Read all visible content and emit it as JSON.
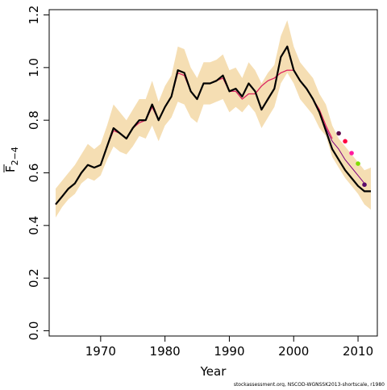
{
  "chart_data": {
    "type": "line",
    "title": "",
    "xlabel": "Year",
    "ylabel": "F",
    "ylabel_subscript": "2−4",
    "xlim": [
      1962.0,
      2013.0
    ],
    "ylim": [
      -0.02,
      1.22
    ],
    "x_ticks": [
      1970,
      1980,
      1990,
      2000,
      2010
    ],
    "x_tick_labels": [
      "1970",
      "1980",
      "1990",
      "2000",
      "2010"
    ],
    "y_ticks": [
      0.0,
      0.2,
      0.4,
      0.6,
      0.8,
      1.0,
      1.2
    ],
    "y_tick_labels": [
      "0.0",
      "0.2",
      "0.4",
      "0.6",
      "0.8",
      "1.0",
      "1.2"
    ],
    "grid": false,
    "legend": "none",
    "years": [
      1963,
      1964,
      1965,
      1966,
      1967,
      1968,
      1969,
      1970,
      1971,
      1972,
      1973,
      1974,
      1975,
      1976,
      1977,
      1978,
      1979,
      1980,
      1981,
      1982,
      1983,
      1984,
      1985,
      1986,
      1987,
      1988,
      1989,
      1990,
      1991,
      1992,
      1993,
      1994,
      1995,
      1996,
      1997,
      1998,
      1999,
      2000,
      2001,
      2002,
      2003,
      2004,
      2005,
      2006,
      2007,
      2008,
      2009,
      2010,
      2011,
      2012
    ],
    "confidence_band": {
      "color": "#f5deb3",
      "lower": [
        0.43,
        0.47,
        0.5,
        0.52,
        0.56,
        0.58,
        0.57,
        0.59,
        0.65,
        0.7,
        0.68,
        0.67,
        0.7,
        0.74,
        0.73,
        0.78,
        0.72,
        0.78,
        0.81,
        0.87,
        0.86,
        0.81,
        0.79,
        0.86,
        0.86,
        0.87,
        0.88,
        0.83,
        0.85,
        0.83,
        0.86,
        0.83,
        0.77,
        0.81,
        0.85,
        0.94,
        0.98,
        0.94,
        0.88,
        0.85,
        0.82,
        0.77,
        0.74,
        0.66,
        0.62,
        0.58,
        0.55,
        0.52,
        0.48,
        0.46
      ],
      "upper": [
        0.54,
        0.57,
        0.6,
        0.63,
        0.67,
        0.71,
        0.69,
        0.71,
        0.78,
        0.86,
        0.83,
        0.8,
        0.84,
        0.88,
        0.88,
        0.95,
        0.87,
        0.93,
        0.97,
        1.08,
        1.07,
        1.0,
        0.96,
        1.02,
        1.02,
        1.03,
        1.05,
        0.99,
        1.0,
        0.96,
        1.02,
        0.99,
        0.94,
        0.98,
        1.01,
        1.12,
        1.18,
        1.08,
        1.02,
        0.99,
        0.96,
        0.9,
        0.86,
        0.78,
        0.73,
        0.7,
        0.67,
        0.64,
        0.61,
        0.62
      ]
    },
    "series": [
      {
        "color": "#000000",
        "width": 2.2,
        "values": [
          0.48,
          0.51,
          0.54,
          0.56,
          0.6,
          0.63,
          0.62,
          0.63,
          0.7,
          0.77,
          0.75,
          0.73,
          0.77,
          0.8,
          0.8,
          0.86,
          0.8,
          0.85,
          0.89,
          0.99,
          0.98,
          0.91,
          0.88,
          0.94,
          0.94,
          0.95,
          0.97,
          0.91,
          0.92,
          0.89,
          0.94,
          0.91,
          0.84,
          0.88,
          0.92,
          1.04,
          1.08,
          0.99,
          0.95,
          0.92,
          0.88,
          0.83,
          0.76,
          0.69,
          0.65,
          0.61,
          0.58,
          0.55,
          0.53,
          0.53
        ]
      },
      {
        "color": "#e0245e",
        "width": 1.2,
        "values": [
          0.48,
          0.51,
          0.54,
          0.56,
          0.6,
          0.63,
          0.62,
          0.63,
          0.7,
          0.76,
          0.75,
          0.73,
          0.77,
          0.79,
          0.8,
          0.85,
          0.8,
          0.85,
          0.89,
          0.98,
          0.97,
          0.91,
          0.88,
          0.94,
          0.94,
          0.95,
          0.96,
          0.91,
          0.91,
          0.88,
          0.9,
          0.9,
          0.93,
          0.95,
          0.96,
          0.98,
          0.99,
          0.99,
          0.95,
          0.92,
          0.88,
          0.84,
          0.78,
          0.73
        ]
      },
      {
        "color": "#800080",
        "width": 1.0,
        "values": [
          0.48,
          0.51,
          0.54,
          0.56,
          0.6,
          0.63,
          0.62,
          0.63,
          0.7,
          0.76,
          0.75,
          0.73,
          0.77,
          0.79,
          0.8,
          0.85,
          0.8,
          0.85,
          0.89,
          0.98,
          0.97,
          0.91,
          0.88,
          0.94,
          0.94,
          0.95,
          0.96,
          0.91,
          0.91,
          0.88,
          0.9,
          0.9,
          0.93,
          0.95,
          0.96,
          0.98,
          0.99,
          0.99,
          0.95,
          0.92,
          0.88,
          0.83,
          0.77,
          0.72,
          0.69,
          0.65,
          0.62,
          0.59,
          0.56
        ]
      }
    ],
    "retro_points": [
      {
        "x": 2007,
        "y": 0.75,
        "color": "#5a0a4a"
      },
      {
        "x": 2008,
        "y": 0.72,
        "color": "#ff0040"
      },
      {
        "x": 2009,
        "y": 0.675,
        "color": "#ff1aa0"
      },
      {
        "x": 2010,
        "y": 0.635,
        "color": "#7fdc00"
      },
      {
        "x": 2011,
        "y": 0.555,
        "color": "#5a0a6a"
      }
    ]
  },
  "footnote": "stockassessment.org, NSCOD-WGNSSK2013-shortscale, r1980"
}
